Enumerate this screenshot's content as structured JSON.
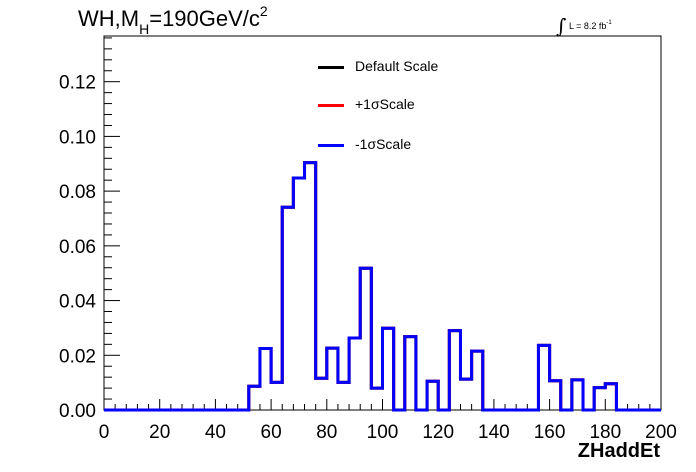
{
  "title": {
    "main": "WH,M",
    "sub": "H",
    "rest": "=190GeV/c",
    "sup": "2"
  },
  "lumi": {
    "integral": "∫",
    "text": "L = 8.2 fb",
    "sup": "-1"
  },
  "legend": [
    {
      "label": "Default Scale",
      "color": "#000000"
    },
    {
      "label": "+1σScale",
      "color": "#ff0000"
    },
    {
      "label": "-1σScale",
      "color": "#0000ff"
    }
  ],
  "chart_data": {
    "type": "line",
    "title": "WH,M_H=190GeV/c^2",
    "xlabel": "ZHaddEt",
    "ylabel": "",
    "xlim": [
      0,
      200
    ],
    "ylim": [
      0,
      0.1367
    ],
    "xticks": [
      0,
      20,
      40,
      60,
      80,
      100,
      120,
      140,
      160,
      180,
      200
    ],
    "yticks": [
      0.0,
      0.02,
      0.04,
      0.06,
      0.08,
      0.1,
      0.12
    ],
    "ytick_labels": [
      "0.00",
      "0.02",
      "0.04",
      "0.06",
      "0.08",
      "0.10",
      "0.12"
    ],
    "histogram": true,
    "bin_edges": [
      0,
      4,
      8,
      12,
      16,
      20,
      24,
      28,
      32,
      36,
      40,
      44,
      48,
      52,
      56,
      60,
      64,
      68,
      72,
      76,
      80,
      84,
      88,
      92,
      96,
      100,
      104,
      108,
      112,
      116,
      120,
      124,
      128,
      132,
      136,
      140,
      144,
      148,
      152,
      156,
      160,
      164,
      168,
      172,
      176,
      180,
      184,
      188,
      192,
      196,
      200
    ],
    "series": [
      {
        "name": "Default Scale",
        "color": "#000000",
        "values": [
          0,
          0,
          0,
          0,
          0,
          0,
          0,
          0,
          0,
          0,
          0,
          0,
          0,
          0.0087,
          0.0225,
          0.0101,
          0.0741,
          0.0848,
          0.0904,
          0.0116,
          0.0226,
          0.0101,
          0.0263,
          0.0518,
          0.008,
          0.0299,
          0,
          0.0268,
          0,
          0.0105,
          0,
          0.029,
          0.0113,
          0.0215,
          0,
          0,
          0,
          0,
          0,
          0.0236,
          0.0107,
          0,
          0.011,
          0,
          0.0082,
          0.0096,
          0,
          0,
          0,
          0
        ]
      },
      {
        "name": "+1σScale",
        "color": "#ff0000",
        "values": [
          0,
          0,
          0,
          0,
          0,
          0,
          0,
          0,
          0,
          0,
          0,
          0,
          0,
          0.0087,
          0.0225,
          0.0101,
          0.0741,
          0.0848,
          0.0904,
          0.0116,
          0.0226,
          0.0101,
          0.0263,
          0.0518,
          0.008,
          0.0299,
          0,
          0.0268,
          0,
          0.0105,
          0,
          0.029,
          0.0113,
          0.0215,
          0,
          0,
          0,
          0,
          0,
          0.0236,
          0.0107,
          0,
          0.011,
          0,
          0.0082,
          0.0096,
          0,
          0,
          0,
          0
        ]
      },
      {
        "name": "-1σScale",
        "color": "#0000ff",
        "values": [
          0,
          0,
          0,
          0,
          0,
          0,
          0,
          0,
          0,
          0,
          0,
          0,
          0,
          0.0087,
          0.0225,
          0.0101,
          0.0741,
          0.0848,
          0.0904,
          0.0116,
          0.0226,
          0.0101,
          0.0263,
          0.0518,
          0.008,
          0.0299,
          0,
          0.0268,
          0,
          0.0105,
          0,
          0.029,
          0.0113,
          0.0215,
          0,
          0,
          0,
          0,
          0,
          0.0236,
          0.0107,
          0,
          0.011,
          0,
          0.0082,
          0.0096,
          0,
          0,
          0,
          0
        ]
      }
    ],
    "legend_position": "top-center",
    "grid": false
  }
}
